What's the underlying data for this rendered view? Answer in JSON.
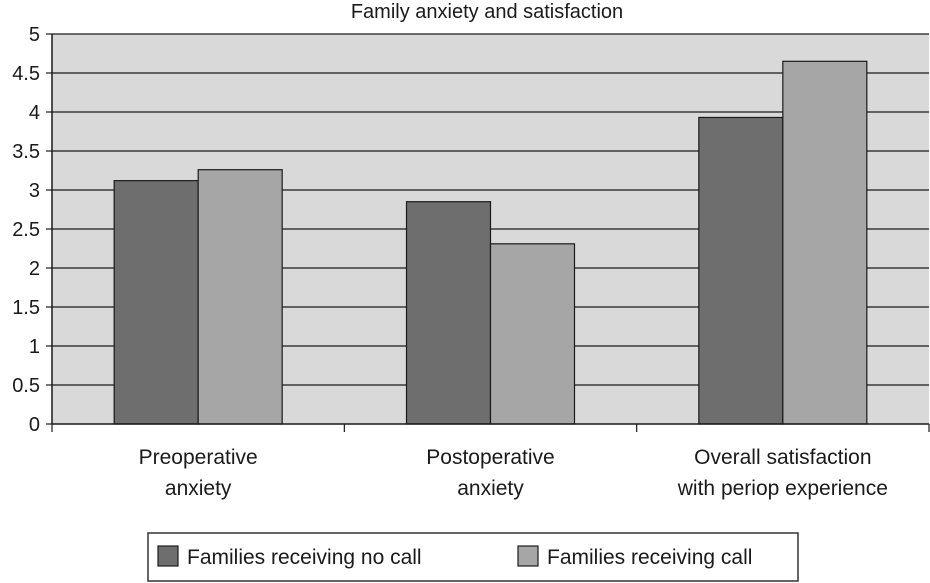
{
  "chart_data": {
    "type": "bar",
    "title": "Family anxiety and satisfaction",
    "categories": [
      [
        "Preoperative",
        "anxiety"
      ],
      [
        "Postoperative",
        "anxiety"
      ],
      [
        "Overall satisfaction",
        "with periop experience"
      ]
    ],
    "series": [
      {
        "name": "Families receiving no call",
        "values": [
          3.12,
          2.85,
          3.93
        ],
        "color": "#6e6e6e"
      },
      {
        "name": "Families receiving call",
        "values": [
          3.26,
          2.31,
          4.65
        ],
        "color": "#a6a6a6"
      }
    ],
    "ylim": [
      0,
      5
    ],
    "yticks": [
      "0",
      "0.5",
      "1",
      "1.5",
      "2",
      "2.5",
      "3",
      "3.5",
      "4",
      "4.5",
      "5"
    ],
    "ytick_values": [
      0,
      0.5,
      1,
      1.5,
      2,
      2.5,
      3,
      3.5,
      4,
      4.5,
      5
    ],
    "grid": true,
    "plot_background": "#d9d9d9",
    "legend_position": "bottom"
  }
}
